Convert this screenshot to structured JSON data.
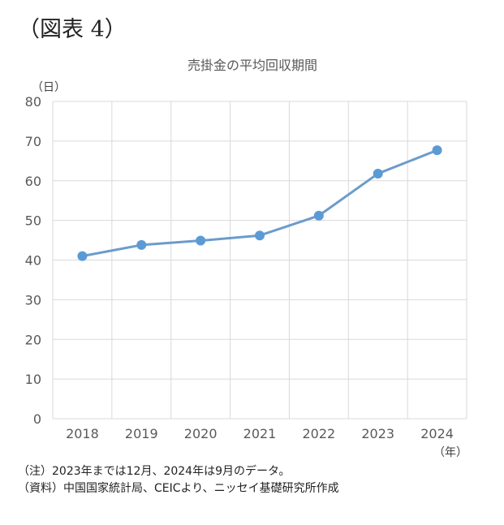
{
  "figure_label": "（図表 4）",
  "chart_data": {
    "type": "line",
    "title": "売掛金の平均回収期間",
    "ylabel": "（日）",
    "xlabel": "（年）",
    "categories": [
      "2018",
      "2019",
      "2020",
      "2021",
      "2022",
      "2023",
      "2024"
    ],
    "series": [
      {
        "values": [
          41.0,
          43.8,
          44.9,
          46.2,
          51.2,
          61.8,
          67.7
        ]
      }
    ],
    "ylim": [
      0,
      80
    ],
    "yticks": [
      0,
      10,
      20,
      30,
      40,
      50,
      60,
      70,
      80
    ],
    "grid": true,
    "line_color": "#6b9ccb",
    "marker_color": "#5b9bd5"
  },
  "notes": {
    "note1": "（注）2023年までは12月、2024年は9月のデータ。",
    "note2": "（資料）中国国家統計局、CEICより、ニッセイ基礎研究所作成"
  }
}
